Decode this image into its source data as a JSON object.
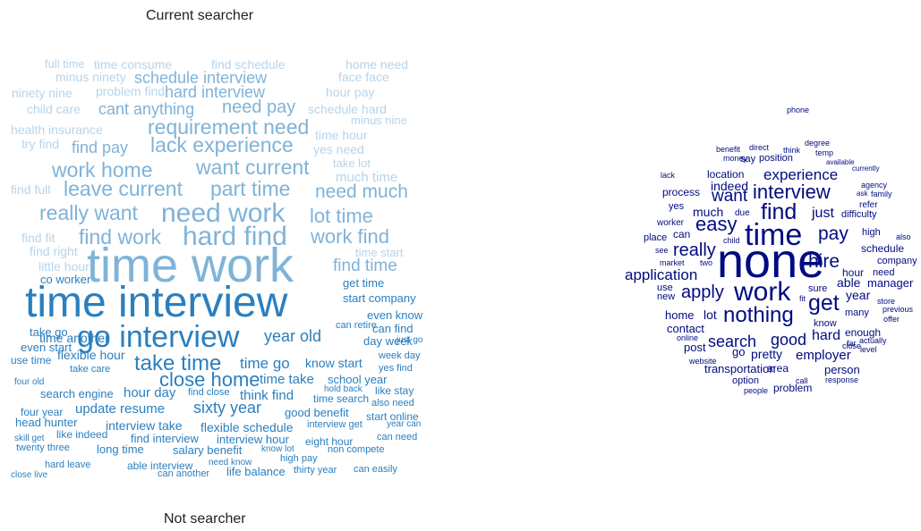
{
  "labels": {
    "top": "Current searcher",
    "bottom": "Not searcher"
  },
  "palette": {
    "c1": "#0a1f8f",
    "c2": "#2a7fbf",
    "c3": "#7fb3d8",
    "c4": "#b7d4ea",
    "c5": "#000b80"
  },
  "left_cloud": {
    "words": [
      {
        "t": "full time",
        "c": "c4"
      },
      {
        "t": "time consume",
        "c": "c4"
      },
      {
        "t": "find schedule",
        "c": "c4"
      },
      {
        "t": "home need",
        "c": "c4"
      },
      {
        "t": "minus ninety",
        "c": "c4"
      },
      {
        "t": "schedule interview",
        "c": "c3"
      },
      {
        "t": "face face",
        "c": "c4"
      },
      {
        "t": "ninety nine",
        "c": "c4"
      },
      {
        "t": "problem find",
        "c": "c4"
      },
      {
        "t": "hard interview",
        "c": "c3"
      },
      {
        "t": "hour pay",
        "c": "c4"
      },
      {
        "t": "child care",
        "c": "c4"
      },
      {
        "t": "cant anything",
        "c": "c3"
      },
      {
        "t": "need pay",
        "c": "c3"
      },
      {
        "t": "schedule hard",
        "c": "c4"
      },
      {
        "t": "minus nine",
        "c": "c4"
      },
      {
        "t": "health insurance",
        "c": "c4"
      },
      {
        "t": "requirement need",
        "c": "c3"
      },
      {
        "t": "time hour",
        "c": "c4"
      },
      {
        "t": "try find",
        "c": "c4"
      },
      {
        "t": "find pay",
        "c": "c3"
      },
      {
        "t": "lack experience",
        "c": "c3"
      },
      {
        "t": "yes need",
        "c": "c4"
      },
      {
        "t": "take lot",
        "c": "c4"
      },
      {
        "t": "work home",
        "c": "c3"
      },
      {
        "t": "want current",
        "c": "c3"
      },
      {
        "t": "much time",
        "c": "c4"
      },
      {
        "t": "find full",
        "c": "c4"
      },
      {
        "t": "leave current",
        "c": "c3"
      },
      {
        "t": "part time",
        "c": "c3"
      },
      {
        "t": "need much",
        "c": "c3"
      },
      {
        "t": "really want",
        "c": "c3"
      },
      {
        "t": "need work",
        "c": "c3"
      },
      {
        "t": "lot time",
        "c": "c3"
      },
      {
        "t": "hard find",
        "c": "c3"
      },
      {
        "t": "find fit",
        "c": "c4"
      },
      {
        "t": "find work",
        "c": "c3"
      },
      {
        "t": "work find",
        "c": "c3"
      },
      {
        "t": "find right",
        "c": "c4"
      },
      {
        "t": "time start",
        "c": "c4"
      },
      {
        "t": "little hour",
        "c": "c4"
      },
      {
        "t": "time work",
        "c": "c3"
      },
      {
        "t": "find time",
        "c": "c3"
      },
      {
        "t": "co worker",
        "c": "c2"
      },
      {
        "t": "get time",
        "c": "c2"
      },
      {
        "t": "start company",
        "c": "c2"
      },
      {
        "t": "time interview",
        "c": "c2"
      },
      {
        "t": "even know",
        "c": "c2"
      },
      {
        "t": "can find",
        "c": "c2"
      },
      {
        "t": "go interview",
        "c": "c2"
      },
      {
        "t": "take go",
        "c": "c2"
      },
      {
        "t": "year old",
        "c": "c2"
      },
      {
        "t": "day week",
        "c": "c2"
      },
      {
        "t": "just go",
        "c": "c2"
      },
      {
        "t": "even start",
        "c": "c2"
      },
      {
        "t": "time another",
        "c": "c2"
      },
      {
        "t": "can retire",
        "c": "c2"
      },
      {
        "t": "week day",
        "c": "c2"
      },
      {
        "t": "use time",
        "c": "c2"
      },
      {
        "t": "take care",
        "c": "c2"
      },
      {
        "t": "take time",
        "c": "c2"
      },
      {
        "t": "time go",
        "c": "c2"
      },
      {
        "t": "know start",
        "c": "c2"
      },
      {
        "t": "yes find",
        "c": "c2"
      },
      {
        "t": "four old",
        "c": "c2"
      },
      {
        "t": "flexible hour",
        "c": "c2"
      },
      {
        "t": "close home",
        "c": "c2"
      },
      {
        "t": "time take",
        "c": "c2"
      },
      {
        "t": "school year",
        "c": "c2"
      },
      {
        "t": "hold back",
        "c": "c2"
      },
      {
        "t": "like stay",
        "c": "c2"
      },
      {
        "t": "search engine",
        "c": "c2"
      },
      {
        "t": "hour day",
        "c": "c2"
      },
      {
        "t": "find close",
        "c": "c2"
      },
      {
        "t": "think find",
        "c": "c2"
      },
      {
        "t": "time search",
        "c": "c2"
      },
      {
        "t": "also need",
        "c": "c2"
      },
      {
        "t": "update resume",
        "c": "c2"
      },
      {
        "t": "sixty year",
        "c": "c2"
      },
      {
        "t": "four year",
        "c": "c2"
      },
      {
        "t": "good benefit",
        "c": "c2"
      },
      {
        "t": "start online",
        "c": "c2"
      },
      {
        "t": "head hunter",
        "c": "c2"
      },
      {
        "t": "interview take",
        "c": "c2"
      },
      {
        "t": "flexible schedule",
        "c": "c2"
      },
      {
        "t": "interview get",
        "c": "c2"
      },
      {
        "t": "year can",
        "c": "c2"
      },
      {
        "t": "like indeed",
        "c": "c2"
      },
      {
        "t": "find interview",
        "c": "c2"
      },
      {
        "t": "interview hour",
        "c": "c2"
      },
      {
        "t": "eight hour",
        "c": "c2"
      },
      {
        "t": "can need",
        "c": "c2"
      },
      {
        "t": "skill get",
        "c": "c2"
      },
      {
        "t": "twenty three",
        "c": "c2"
      },
      {
        "t": "long time",
        "c": "c2"
      },
      {
        "t": "salary benefit",
        "c": "c2"
      },
      {
        "t": "know lot",
        "c": "c2"
      },
      {
        "t": "non compete",
        "c": "c2"
      },
      {
        "t": "high pay",
        "c": "c2"
      },
      {
        "t": "hard leave",
        "c": "c2"
      },
      {
        "t": "able interview",
        "c": "c2"
      },
      {
        "t": "need know",
        "c": "c2"
      },
      {
        "t": "can another",
        "c": "c2"
      },
      {
        "t": "life balance",
        "c": "c2"
      },
      {
        "t": "thirty year",
        "c": "c2"
      },
      {
        "t": "can easily",
        "c": "c2"
      },
      {
        "t": "close live",
        "c": "c2"
      }
    ]
  },
  "right_cloud": {
    "words": [
      {
        "t": "phone"
      },
      {
        "t": "benefit"
      },
      {
        "t": "direct"
      },
      {
        "t": "think"
      },
      {
        "t": "degree"
      },
      {
        "t": "money"
      },
      {
        "t": "say"
      },
      {
        "t": "position"
      },
      {
        "t": "temp"
      },
      {
        "t": "available"
      },
      {
        "t": "currently"
      },
      {
        "t": "lack"
      },
      {
        "t": "location"
      },
      {
        "t": "experience"
      },
      {
        "t": "agency"
      },
      {
        "t": "process"
      },
      {
        "t": "indeed"
      },
      {
        "t": "interview"
      },
      {
        "t": "ask"
      },
      {
        "t": "family"
      },
      {
        "t": "want"
      },
      {
        "t": "refer"
      },
      {
        "t": "yes"
      },
      {
        "t": "much"
      },
      {
        "t": "find"
      },
      {
        "t": "just"
      },
      {
        "t": "difficulty"
      },
      {
        "t": "due"
      },
      {
        "t": "worker"
      },
      {
        "t": "easy"
      },
      {
        "t": "place"
      },
      {
        "t": "can"
      },
      {
        "t": "time"
      },
      {
        "t": "pay"
      },
      {
        "t": "high"
      },
      {
        "t": "also"
      },
      {
        "t": "child"
      },
      {
        "t": "see"
      },
      {
        "t": "market"
      },
      {
        "t": "two"
      },
      {
        "t": "really"
      },
      {
        "t": "schedule"
      },
      {
        "t": "company"
      },
      {
        "t": "application"
      },
      {
        "t": "none"
      },
      {
        "t": "hire"
      },
      {
        "t": "use"
      },
      {
        "t": "fit"
      },
      {
        "t": "able"
      },
      {
        "t": "manager"
      },
      {
        "t": "new"
      },
      {
        "t": "apply"
      },
      {
        "t": "work"
      },
      {
        "t": "hour"
      },
      {
        "t": "need"
      },
      {
        "t": "sure"
      },
      {
        "t": "get"
      },
      {
        "t": "year"
      },
      {
        "t": "store"
      },
      {
        "t": "home"
      },
      {
        "t": "lot"
      },
      {
        "t": "nothing"
      },
      {
        "t": "many"
      },
      {
        "t": "previous"
      },
      {
        "t": "contact"
      },
      {
        "t": "know"
      },
      {
        "t": "offer"
      },
      {
        "t": "enough"
      },
      {
        "t": "online"
      },
      {
        "t": "search"
      },
      {
        "t": "good"
      },
      {
        "t": "hard"
      },
      {
        "t": "close"
      },
      {
        "t": "far"
      },
      {
        "t": "actually"
      },
      {
        "t": "post"
      },
      {
        "t": "go"
      },
      {
        "t": "pretty"
      },
      {
        "t": "employer"
      },
      {
        "t": "level"
      },
      {
        "t": "website"
      },
      {
        "t": "transportation"
      },
      {
        "t": "area"
      },
      {
        "t": "person"
      },
      {
        "t": "option"
      },
      {
        "t": "call"
      },
      {
        "t": "response"
      },
      {
        "t": "people"
      },
      {
        "t": "problem"
      }
    ]
  }
}
